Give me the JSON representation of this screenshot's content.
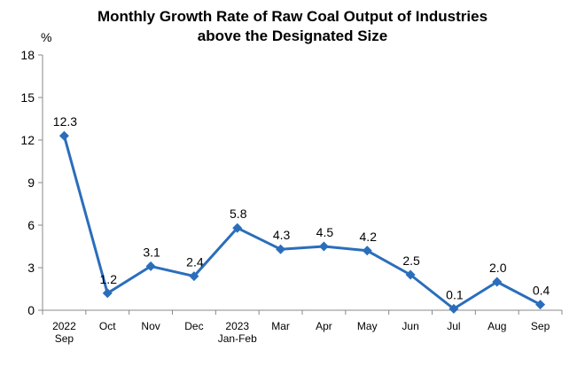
{
  "chart_data": {
    "type": "line",
    "title_line1": "Monthly Growth Rate of Raw Coal Output of Industries",
    "title_line2": "above the Designated Size",
    "ylabel": "%",
    "ylim": [
      0,
      18
    ],
    "yticks": [
      0,
      3,
      6,
      9,
      12,
      15,
      18
    ],
    "grid": false,
    "categories": [
      [
        "2022",
        "Sep"
      ],
      [
        "Oct"
      ],
      [
        "Nov"
      ],
      [
        "Dec"
      ],
      [
        "2023",
        "Jan-Feb"
      ],
      [
        "Mar"
      ],
      [
        "Apr"
      ],
      [
        "May"
      ],
      [
        "Jun"
      ],
      [
        "Jul"
      ],
      [
        "Aug"
      ],
      [
        "Sep"
      ]
    ],
    "series": [
      {
        "values": [
          12.3,
          1.2,
          3.1,
          2.4,
          5.8,
          4.3,
          4.5,
          4.2,
          2.5,
          0.1,
          2.0,
          0.4
        ],
        "labels": [
          "12.3",
          "1.2",
          "3.1",
          "2.4",
          "5.8",
          "4.3",
          "4.5",
          "4.2",
          "2.5",
          "0.1",
          "2.0",
          "0.4"
        ],
        "color": "#2a6ebb"
      }
    ]
  }
}
